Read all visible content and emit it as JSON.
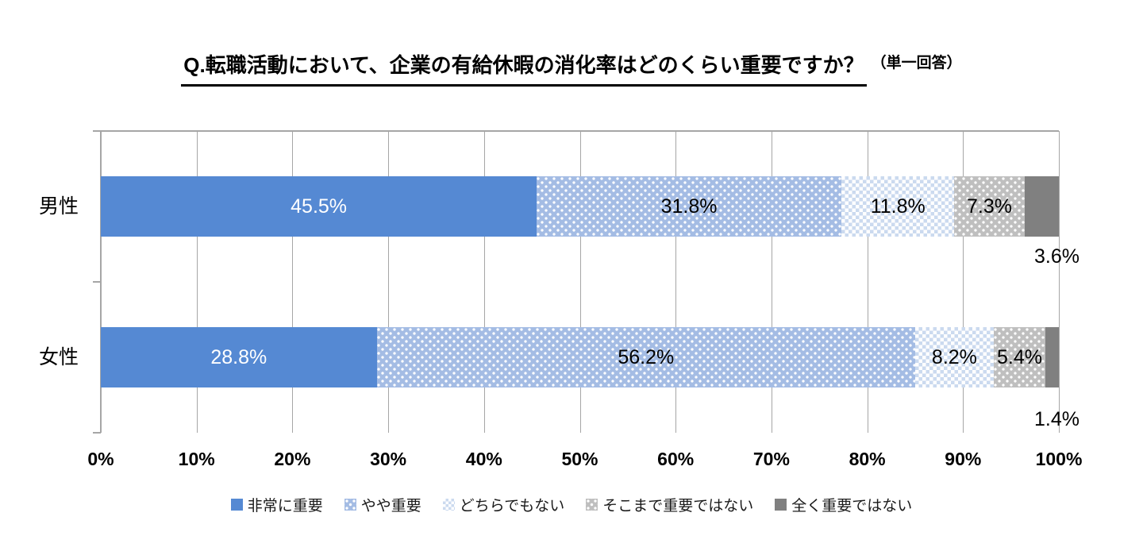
{
  "title": {
    "main": "Q.転職活動において、企業の有給休暇の消化率はどのくらい重要ですか？",
    "note": "（単一回答）"
  },
  "chart_data": {
    "type": "bar",
    "orientation": "horizontal",
    "stacked": true,
    "unit": "%",
    "categories": [
      "男性",
      "女性"
    ],
    "series": [
      {
        "name": "非常に重要",
        "values": [
          45.5,
          28.8
        ],
        "pattern": "solid-blue",
        "fill": "#5589D3",
        "label_color": "#FFFFFF",
        "label_position": "inside"
      },
      {
        "name": "やや重要",
        "values": [
          31.8,
          56.2
        ],
        "pattern": "dot-blue",
        "fill": "#A4BCE4",
        "label_color": "#000000",
        "label_position": "inside"
      },
      {
        "name": "どちらでもない",
        "values": [
          11.8,
          8.2
        ],
        "pattern": "check-blue",
        "fill": "#CBDAEF",
        "label_color": "#000000",
        "label_position": "inside"
      },
      {
        "name": "そこまで重要ではない",
        "values": [
          7.3,
          5.4
        ],
        "pattern": "dot-gray",
        "fill": "#BFBFBF",
        "label_color": "#000000",
        "label_position": "inside"
      },
      {
        "name": "全く重要ではない",
        "values": [
          3.6,
          1.4
        ],
        "pattern": "solid-darkgray",
        "fill": "#808080",
        "label_color": "#000000",
        "label_position": "below"
      }
    ],
    "x_axis": {
      "min": 0,
      "max": 100,
      "tick_labels": [
        "0%",
        "10%",
        "20%",
        "30%",
        "40%",
        "50%",
        "60%",
        "70%",
        "80%",
        "90%",
        "100%"
      ]
    },
    "grid": true,
    "gridline_color": "#A6A6A6",
    "legend_position": "bottom",
    "label_format": "0.0%"
  }
}
